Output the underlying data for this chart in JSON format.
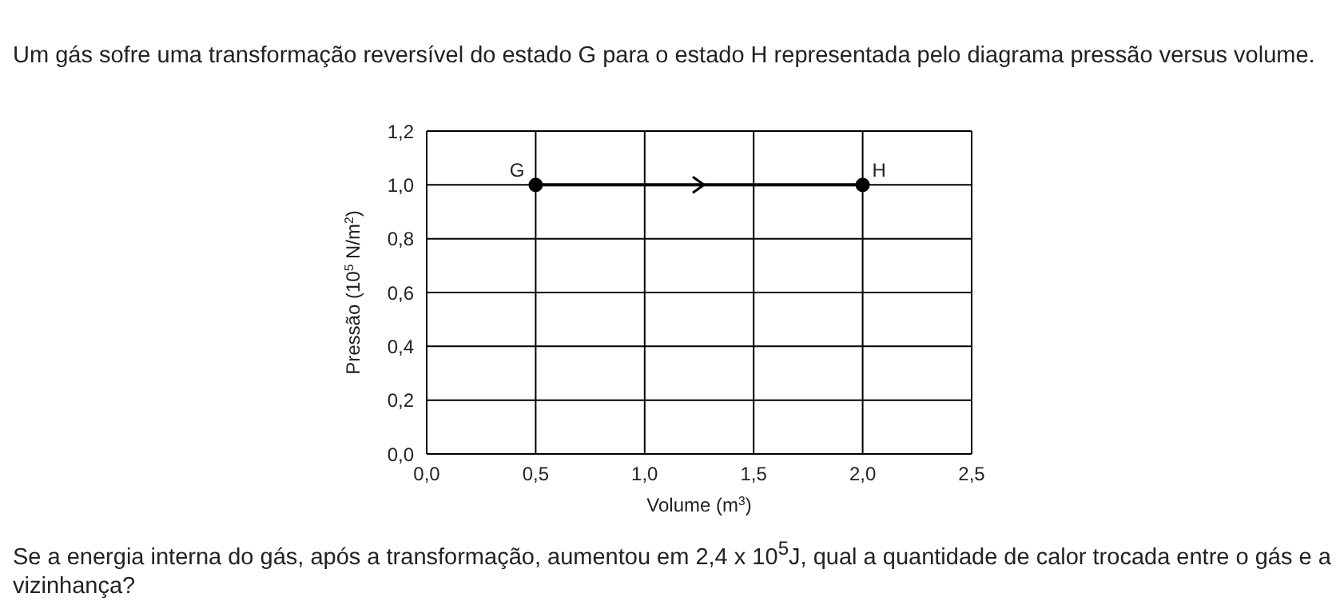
{
  "chart_data": {
    "type": "line",
    "title": "Um gás sofre uma transformação reversível do estado G para o estado H representada pelo diagrama pressão versus volume.",
    "xlabel": "Volume (m$^{3}$)",
    "ylabel": "Pressão (10$^{5}$ N/m$^{2}$)",
    "x": [
      0.5,
      2.0
    ],
    "series": [
      {
        "color": "#000000",
        "values": [
          1.0,
          1.0
        ]
      }
    ],
    "xlim": [
      0,
      2.5
    ],
    "xticks": [
      {
        "value": 0,
        "label": "0,0"
      },
      {
        "value": 0.5,
        "label": "0,5"
      },
      {
        "value": 1,
        "label": "1,0"
      },
      {
        "value": 1.5,
        "label": "1,5"
      },
      {
        "value": 2,
        "label": "2,0"
      },
      {
        "value": 2.5,
        "label": "2,5"
      }
    ],
    "ylim": [
      0,
      1.2
    ],
    "yticks": [
      {
        "value": 0,
        "label": "0,0"
      },
      {
        "value": 0.2,
        "label": "0,2"
      },
      {
        "value": 0.4,
        "label": "0,4"
      },
      {
        "value": 0.6,
        "label": "0,6"
      },
      {
        "value": 0.8,
        "label": "0,8"
      },
      {
        "value": 1,
        "label": "1,0"
      },
      {
        "value": 1.2,
        "label": "1,2"
      }
    ],
    "grid": true,
    "marker": "circle",
    "line_style": "solid",
    "annotations": [
      {
        "text": "G",
        "x": 0.5,
        "y": 1.0
      },
      {
        "text": "H",
        "x": 2.0,
        "y": 1.0
      },
      "Se a energia interna do gás, após a transformação, aumentou em 2,4 x 10$^{5}$J, qual a quantidade de calor trocada entre o gás e a vizinhança?"
    ]
  }
}
